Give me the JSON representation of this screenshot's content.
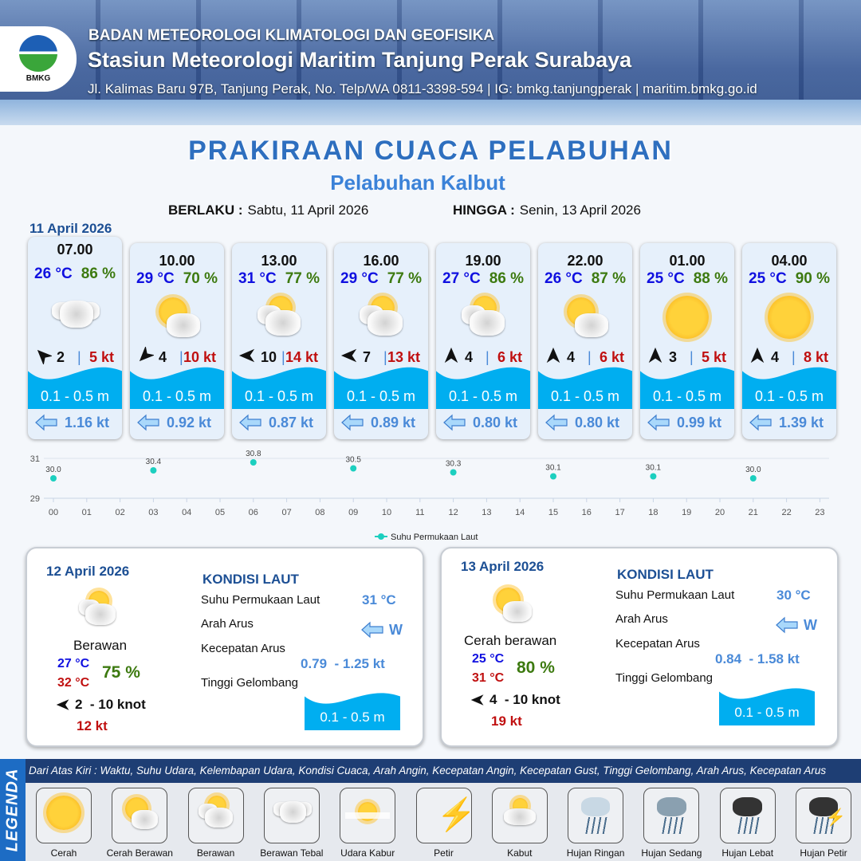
{
  "header": {
    "org": "BADAN METEOROLOGI KLIMATOLOGI DAN GEOFISIKA",
    "station": "Stasiun Meteorologi Maritim Tanjung Perak Surabaya",
    "contact": "Jl. Kalimas Baru 97B, Tanjung Perak, No. Telp/WA 0811-3398-594 | IG: bmkg.tanjungperak | maritim.bmkg.go.id",
    "logo_text": "BMKG"
  },
  "title": "PRAKIRAAN CUACA PELABUHAN",
  "subtitle": "Pelabuhan Kalbut",
  "validity": {
    "from_label": "BERLAKU :",
    "from": "Sabtu, 11 April 2026",
    "to_label": "HINGGA :",
    "to": "Senin, 13 April 2026"
  },
  "day1": {
    "date": "11 April 2026",
    "slots": [
      {
        "time": "07.00",
        "temp": "26 °C",
        "hum": "86 %",
        "icon": "berawan-tebal",
        "wind_dir": "NW",
        "wind": "2",
        "gust": "5 kt",
        "wave": "0.1 - 0.5 m",
        "cur_dir": "W",
        "cur": "1.16 kt"
      },
      {
        "time": "10.00",
        "temp": "29 °C",
        "hum": "70 %",
        "icon": "cerah-berawan",
        "wind_dir": "SW",
        "wind": "4",
        "gust": "10 kt",
        "wave": "0.1 - 0.5 m",
        "cur_dir": "W",
        "cur": "0.92 kt"
      },
      {
        "time": "13.00",
        "temp": "31 °C",
        "hum": "77 %",
        "icon": "berawan",
        "wind_dir": "W",
        "wind": "10",
        "gust": "14 kt",
        "wave": "0.1 - 0.5 m",
        "cur_dir": "W",
        "cur": "0.87 kt"
      },
      {
        "time": "16.00",
        "temp": "29 °C",
        "hum": "77 %",
        "icon": "berawan",
        "wind_dir": "W",
        "wind": "7",
        "gust": "13 kt",
        "wave": "0.1 - 0.5 m",
        "cur_dir": "W",
        "cur": "0.89 kt"
      },
      {
        "time": "19.00",
        "temp": "27 °C",
        "hum": "86 %",
        "icon": "berawan",
        "wind_dir": "N",
        "wind": "4",
        "gust": "6 kt",
        "wave": "0.1 - 0.5 m",
        "cur_dir": "N",
        "cur": "0.80 kt"
      },
      {
        "time": "22.00",
        "temp": "26 °C",
        "hum": "87 %",
        "icon": "cerah-berawan",
        "wind_dir": "N",
        "wind": "4",
        "gust": "6 kt",
        "wave": "0.1 - 0.5 m",
        "cur_dir": "N",
        "cur": "0.80 kt"
      },
      {
        "time": "01.00",
        "temp": "25 °C",
        "hum": "88 %",
        "icon": "cerah",
        "wind_dir": "N",
        "wind": "3",
        "gust": "5 kt",
        "wave": "0.1 - 0.5 m",
        "cur_dir": "W",
        "cur": "0.99 kt"
      },
      {
        "time": "04.00",
        "temp": "25 °C",
        "hum": "90 %",
        "icon": "cerah",
        "wind_dir": "N",
        "wind": "4",
        "gust": "8 kt",
        "wave": "0.1 - 0.5 m",
        "cur_dir": "W",
        "cur": "1.39 kt"
      }
    ]
  },
  "chart_data": {
    "type": "scatter",
    "x": [
      "00",
      "03",
      "06",
      "09",
      "12",
      "15",
      "18",
      "21"
    ],
    "values": [
      30.0,
      30.4,
      30.8,
      30.5,
      30.3,
      30.1,
      30.1,
      30.0
    ],
    "xticks": [
      "00",
      "01",
      "02",
      "03",
      "04",
      "05",
      "06",
      "07",
      "08",
      "09",
      "10",
      "11",
      "12",
      "13",
      "14",
      "15",
      "16",
      "17",
      "18",
      "19",
      "20",
      "21",
      "22",
      "23"
    ],
    "yticks": [
      "29",
      "31"
    ],
    "ylim": [
      29,
      31
    ],
    "series_name": "Suhu Permukaan Laut",
    "color": "#1ccfbf",
    "legend": "bottom-center",
    "grid": true
  },
  "days": [
    {
      "date": "12 April 2026",
      "icon": "berawan",
      "cond": "Berawan",
      "tmin": "27 °C",
      "tmax": "32 °C",
      "hum": "75 %",
      "wind_dir": "W",
      "wind": "2  - 10 knot",
      "gust": "12 kt",
      "sea_title": "KONDISI LAUT",
      "sst_label": "Suhu Permukaan Laut",
      "sst": "31 °C",
      "dir_label": "Arah Arus",
      "cur_dir": "W",
      "speed_label": "Kecepatan Arus",
      "speed": "0.79  - 1.25 kt",
      "wave_label": "Tinggi Gelombang",
      "wave": "0.1 - 0.5 m"
    },
    {
      "date": "13 April 2026",
      "icon": "cerah-berawan",
      "cond": "Cerah berawan",
      "tmin": "25 °C",
      "tmax": "31 °C",
      "hum": "80 %",
      "wind_dir": "W",
      "wind": "4  - 10 knot",
      "gust": "19 kt",
      "sea_title": "KONDISI LAUT",
      "sst_label": "Suhu Permukaan Laut",
      "sst": "30 °C",
      "dir_label": "Arah Arus",
      "cur_dir": "W",
      "speed_label": "Kecepatan Arus",
      "speed": "0.84  - 1.58 kt",
      "wave_label": "Tinggi Gelombang",
      "wave": "0.1 - 0.5 m"
    }
  ],
  "legend": {
    "title": "LEGENDA",
    "description": "Dari Atas Kiri : Waktu, Suhu Udara, Kelembapan Udara, Kondisi Cuaca, Arah Angin, Kecepatan Angin, Kecepatan Gust, Tinggi Gelombang, Arah Arus, Kecepatan Arus",
    "items": [
      {
        "label": "Cerah",
        "icon": "cerah"
      },
      {
        "label": "Cerah Berawan",
        "icon": "cerah-berawan"
      },
      {
        "label": "Berawan",
        "icon": "berawan"
      },
      {
        "label": "Berawan Tebal",
        "icon": "berawan-tebal"
      },
      {
        "label": "Udara Kabur",
        "icon": "udara-kabur"
      },
      {
        "label": "Petir",
        "icon": "petir"
      },
      {
        "label": "Kabut",
        "icon": "kabut"
      },
      {
        "label": "Hujan Ringan",
        "icon": "hujan-ringan"
      },
      {
        "label": "Hujan Sedang",
        "icon": "hujan-sedang"
      },
      {
        "label": "Hujan Lebat",
        "icon": "hujan-lebat"
      },
      {
        "label": "Hujan Petir",
        "icon": "hujan-petir"
      }
    ]
  },
  "colors": {
    "temp": "#1010e0",
    "humidity": "#3d7a10",
    "gust": "#c01010",
    "wave": "#00aef0",
    "current": "#4a8ad8",
    "title": "#2e6fbf"
  }
}
